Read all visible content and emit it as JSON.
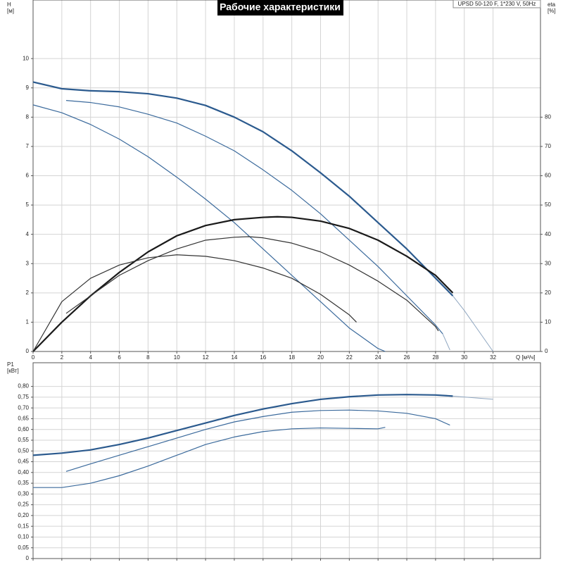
{
  "chart_data": [
    {
      "type": "line",
      "title": "Рабочие характеристики",
      "subtitle": "UPSD 50-120 F, 1*230 V, 50Hz",
      "ylabel": "H",
      "yunit": "[м]",
      "y2label": "eta",
      "y2unit": "[%]",
      "xlabel": "Q [м³/ч]",
      "xlim": [
        0,
        35.3
      ],
      "xticks": [
        0,
        2,
        4,
        6,
        8,
        10,
        12,
        14,
        16,
        18,
        20,
        22,
        24,
        26,
        28,
        30,
        32
      ],
      "ylim": [
        0,
        12
      ],
      "yticks": [
        0,
        1,
        2,
        3,
        4,
        5,
        6,
        7,
        8,
        9,
        10
      ],
      "y2lim": [
        0,
        120
      ],
      "y2ticks": [
        0,
        10,
        20,
        30,
        40,
        50,
        60,
        70,
        80
      ],
      "grid": true,
      "series": [
        {
          "color": "#2b5a8e",
          "width": 2.2,
          "x": [
            0,
            2,
            4,
            6,
            8,
            10,
            12,
            14,
            16,
            18,
            20,
            22,
            24,
            26,
            28,
            29.2
          ],
          "values": [
            9.2,
            8.97,
            8.9,
            8.87,
            8.8,
            8.65,
            8.4,
            8.0,
            7.5,
            6.85,
            6.1,
            5.3,
            4.4,
            3.5,
            2.5,
            1.9
          ]
        },
        {
          "color": "#8fa6c0",
          "width": 1,
          "x": [
            29.2,
            30,
            31,
            32
          ],
          "values": [
            1.9,
            1.4,
            0.7,
            0
          ]
        },
        {
          "color": "#3b6a9c",
          "width": 1.2,
          "x": [
            2.3,
            4,
            6,
            8,
            10,
            12,
            14,
            16,
            18,
            20,
            22,
            24,
            26,
            28,
            28.5
          ],
          "values": [
            8.57,
            8.5,
            8.35,
            8.1,
            7.8,
            7.35,
            6.85,
            6.2,
            5.5,
            4.7,
            3.8,
            2.9,
            1.9,
            0.9,
            0.6
          ]
        },
        {
          "color": "#8fa6c0",
          "width": 1,
          "x": [
            28.5,
            29
          ],
          "values": [
            0.6,
            0.05
          ]
        },
        {
          "color": "#3b6a9c",
          "width": 1.2,
          "x": [
            0,
            2,
            4,
            6,
            8,
            10,
            12,
            14,
            16,
            18,
            20,
            22,
            24,
            24.5
          ],
          "values": [
            8.42,
            8.15,
            7.75,
            7.25,
            6.65,
            5.95,
            5.2,
            4.4,
            3.5,
            2.6,
            1.7,
            0.8,
            0.1,
            0
          ]
        },
        {
          "color": "#1a1a1a",
          "width": 2.2,
          "axis": "y2",
          "x": [
            0,
            2,
            4,
            6,
            8,
            10,
            12,
            14,
            16,
            17,
            18,
            20,
            22,
            24,
            26,
            28,
            29.2
          ],
          "values": [
            0,
            10,
            19,
            27,
            34,
            39.5,
            43,
            45,
            45.8,
            46,
            45.8,
            44.5,
            42,
            38,
            32.5,
            26,
            20
          ]
        },
        {
          "color": "#333333",
          "width": 1.2,
          "axis": "y2",
          "x": [
            2.3,
            4,
            6,
            8,
            10,
            12,
            14,
            15,
            16,
            18,
            20,
            22,
            24,
            26,
            28,
            28.2
          ],
          "values": [
            13,
            19,
            26,
            31,
            35,
            38,
            39,
            39.2,
            38.8,
            37,
            34,
            29.5,
            24,
            17.5,
            8.5,
            7
          ]
        },
        {
          "color": "#333333",
          "width": 1.2,
          "axis": "y2",
          "x": [
            0,
            2,
            4,
            6,
            8,
            10,
            12,
            14,
            16,
            18,
            20,
            22,
            22.5
          ],
          "values": [
            0,
            17,
            25,
            29.5,
            32,
            33,
            32.5,
            31,
            28.5,
            25,
            19.5,
            12.5,
            10
          ]
        }
      ]
    },
    {
      "type": "line",
      "ylabel": "P1",
      "yunit": "[кВт]",
      "xlim": [
        0,
        35.3
      ],
      "ylim": [
        0,
        0.91
      ],
      "yticks": [
        0,
        {
          "value": 0.05,
          "label": "0,05"
        },
        {
          "value": 0.1,
          "label": "0,10"
        },
        {
          "value": 0.15,
          "label": "0,15"
        },
        {
          "value": 0.2,
          "label": "0,20"
        },
        {
          "value": 0.25,
          "label": "0,25"
        },
        {
          "value": 0.3,
          "label": "0,30"
        },
        {
          "value": 0.35,
          "label": "0,35"
        },
        {
          "value": 0.4,
          "label": "0,40"
        },
        {
          "value": 0.45,
          "label": "0,45"
        },
        {
          "value": 0.5,
          "label": "0,50"
        },
        {
          "value": 0.55,
          "label": "0,55"
        },
        {
          "value": 0.6,
          "label": "0,60"
        },
        {
          "value": 0.65,
          "label": "0,65"
        },
        {
          "value": 0.7,
          "label": "0,70"
        },
        {
          "value": 0.75,
          "label": "0,75"
        },
        {
          "value": 0.8,
          "label": "0,80"
        }
      ],
      "grid": true,
      "series": [
        {
          "color": "#2b5a8e",
          "width": 2.2,
          "x": [
            0,
            2,
            4,
            6,
            8,
            10,
            12,
            14,
            16,
            18,
            20,
            22,
            24,
            26,
            28,
            29.2
          ],
          "values": [
            0.48,
            0.49,
            0.505,
            0.53,
            0.56,
            0.595,
            0.63,
            0.665,
            0.695,
            0.72,
            0.74,
            0.752,
            0.76,
            0.762,
            0.76,
            0.755
          ]
        },
        {
          "color": "#8fa6c0",
          "width": 1,
          "x": [
            29.2,
            32
          ],
          "values": [
            0.755,
            0.74
          ]
        },
        {
          "color": "#3b6a9c",
          "width": 1.2,
          "x": [
            2.3,
            4,
            6,
            8,
            10,
            12,
            14,
            16,
            18,
            20,
            22,
            24,
            26,
            28,
            29
          ],
          "values": [
            0.405,
            0.44,
            0.48,
            0.52,
            0.56,
            0.6,
            0.635,
            0.66,
            0.68,
            0.688,
            0.69,
            0.686,
            0.675,
            0.65,
            0.62
          ]
        },
        {
          "color": "#3b6a9c",
          "width": 1.2,
          "x": [
            0,
            2,
            4,
            6,
            8,
            10,
            12,
            14,
            16,
            18,
            20,
            22,
            24,
            24.5
          ],
          "values": [
            0.33,
            0.33,
            0.35,
            0.385,
            0.43,
            0.48,
            0.53,
            0.565,
            0.59,
            0.603,
            0.607,
            0.605,
            0.603,
            0.61
          ]
        }
      ]
    }
  ]
}
